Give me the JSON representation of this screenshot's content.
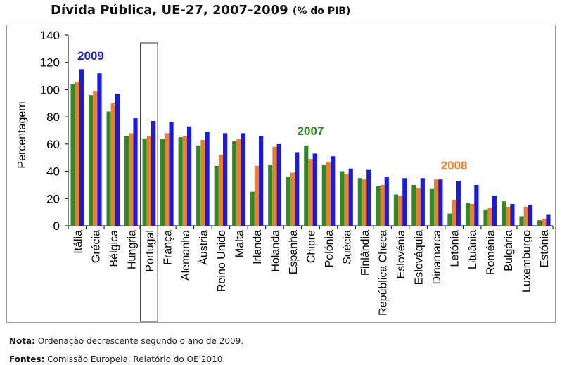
{
  "title": "Dívida Pública, UE-27, 2007-2009",
  "subtitle": "(% do PIB)",
  "note_label": "Nota:",
  "note_text": "Ordenação decrescente segundo o ano de 2009.",
  "source_label": "Fontes:",
  "source_text": "Comissão Europeia, Relatório do OE'2010.",
  "chart_data": {
    "type": "bar",
    "title": "Dívida Pública, UE-27, 2007-2009 (% do PIB)",
    "ylabel": "Percentagem",
    "xlabel": "",
    "ylim": [
      0,
      140
    ],
    "yticks": [
      0,
      20,
      40,
      60,
      80,
      100,
      120,
      140
    ],
    "grid": false,
    "highlighted_category": "Portugal",
    "categories": [
      "Itália",
      "Grécia",
      "Bélgica",
      "Hungria",
      "Portugal",
      "França",
      "Alemanha",
      "Áustria",
      "Reino Unido",
      "Malta",
      "Irlanda",
      "Holanda",
      "Espanha",
      "Chipre",
      "Polónia",
      "Suécia",
      "Finlândia",
      "República Checa",
      "Eslovénia",
      "Eslováquia",
      "Dinamarca",
      "Letónia",
      "Lituânia",
      "Roménia",
      "Bulgária",
      "Luxemburgo",
      "Estónia"
    ],
    "series": [
      {
        "name": "2007",
        "color": "#2e8b22",
        "label_color": "#2e8b22",
        "values": [
          104,
          96,
          84,
          66,
          64,
          64,
          65,
          59,
          44,
          62,
          25,
          45,
          36,
          59,
          45,
          40,
          35,
          29,
          23,
          30,
          27,
          9,
          17,
          12,
          18,
          7,
          4
        ]
      },
      {
        "name": "2008",
        "color": "#f07c30",
        "label_color": "#f07c30",
        "values": [
          106,
          99,
          90,
          68,
          66,
          68,
          66,
          63,
          52,
          64,
          44,
          58,
          39,
          49,
          47,
          38,
          34,
          30,
          22,
          28,
          34,
          19,
          16,
          13,
          14,
          14,
          5
        ]
      },
      {
        "name": "2009",
        "color": "#1a1ae6",
        "label_color": "#2222cc",
        "values": [
          115,
          112,
          97,
          79,
          77,
          76,
          73,
          69,
          68,
          68,
          66,
          60,
          54,
          53,
          51,
          42,
          41,
          36,
          35,
          35,
          34,
          33,
          30,
          22,
          16,
          15,
          8
        ]
      }
    ]
  }
}
